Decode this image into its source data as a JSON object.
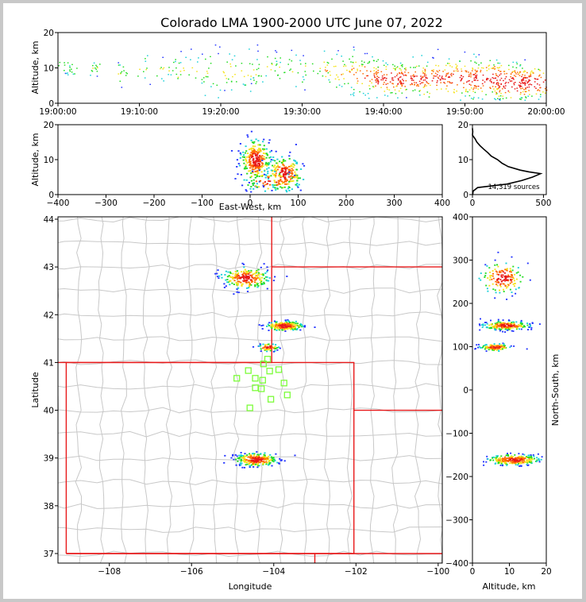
{
  "chart_data": {
    "type": "scatter",
    "title": "Colorado LMA 1900-2000 UTC June 07, 2022",
    "total_sources_label": "14,319 sources",
    "colors": {
      "plot_bg": "#ffffff",
      "state_lines": "#e8191a",
      "county_lines": "#c8c8c8",
      "station_marker": "#7cfc3a",
      "density_low": "#2233ff",
      "density_mid": "#22dd22",
      "density_high": "#e81818"
    },
    "panels": {
      "time_height": {
        "ylabel": "Altitude, km",
        "yticks": [
          "0",
          "10",
          "20"
        ],
        "xticks": [
          "19:00:00",
          "19:10:00",
          "19:20:00",
          "19:30:00",
          "19:40:00",
          "19:50:00",
          "20:00:00"
        ],
        "xlim_minutes": [
          0,
          60
        ],
        "ylim": [
          0,
          20
        ],
        "activity": [
          {
            "t": 0.5,
            "alt": 11,
            "n": 6,
            "spread": 1.5,
            "tw": 0.2
          },
          {
            "t": 1.5,
            "alt": 10,
            "n": 14,
            "spread": 1.3,
            "tw": 0.4
          },
          {
            "t": 4.5,
            "alt": 10,
            "n": 14,
            "spread": 1.2,
            "tw": 0.3
          },
          {
            "t": 8.0,
            "alt": 9,
            "n": 14,
            "spread": 1.8,
            "tw": 0.4
          },
          {
            "t": 10.5,
            "alt": 10,
            "n": 10,
            "spread": 2,
            "tw": 0.4
          },
          {
            "t": 13.5,
            "alt": 10,
            "n": 20,
            "spread": 2,
            "tw": 1.2
          },
          {
            "t": 16.5,
            "alt": 9,
            "n": 24,
            "spread": 3,
            "tw": 1.5
          },
          {
            "t": 19.5,
            "alt": 9,
            "n": 25,
            "spread": 3,
            "tw": 1.5
          },
          {
            "t": 22.5,
            "alt": 9,
            "n": 30,
            "spread": 3,
            "tw": 1.5
          },
          {
            "t": 25.5,
            "alt": 10,
            "n": 25,
            "spread": 2.5,
            "tw": 1.5
          },
          {
            "t": 28.5,
            "alt": 10,
            "n": 20,
            "spread": 2.5,
            "tw": 1.5
          },
          {
            "t": 31.5,
            "alt": 10,
            "n": 20,
            "spread": 2.5,
            "tw": 1.5
          },
          {
            "t": 34.5,
            "alt": 9,
            "n": 40,
            "spread": 3,
            "tw": 1.5
          },
          {
            "t": 37.5,
            "alt": 8,
            "n": 70,
            "spread": 3,
            "tw": 1.5
          },
          {
            "t": 40.5,
            "alt": 7,
            "n": 95,
            "spread": 2.5,
            "tw": 1.5
          },
          {
            "t": 43.5,
            "alt": 7,
            "n": 90,
            "spread": 2.5,
            "tw": 1.5
          },
          {
            "t": 46.5,
            "alt": 7,
            "n": 80,
            "spread": 3,
            "tw": 1.5
          },
          {
            "t": 49.5,
            "alt": 7,
            "n": 90,
            "spread": 3,
            "tw": 1.5
          },
          {
            "t": 52.5,
            "alt": 7,
            "n": 100,
            "spread": 3,
            "tw": 1.5
          },
          {
            "t": 55.5,
            "alt": 6,
            "n": 110,
            "spread": 3,
            "tw": 1.5
          },
          {
            "t": 58.5,
            "alt": 6,
            "n": 120,
            "spread": 2.5,
            "tw": 1.5
          }
        ]
      },
      "ew_height": {
        "ylabel": "Altitude, km",
        "xlabel": "East-West, km",
        "xticks": [
          "−400",
          "−300",
          "−200",
          "−100",
          "0",
          "100",
          "200",
          "300",
          "400"
        ],
        "yticks": [
          "0",
          "10",
          "20"
        ],
        "xlim": [
          -400,
          400
        ],
        "ylim": [
          0,
          20
        ],
        "clusters": [
          {
            "x": 10,
            "alt": 10,
            "sx": 15,
            "sz": 3,
            "n": 260
          },
          {
            "x": 70,
            "alt": 6,
            "sx": 18,
            "sz": 2.5,
            "n": 200
          },
          {
            "x": 40,
            "alt": 4,
            "sx": 25,
            "sz": 1.5,
            "n": 60
          }
        ]
      },
      "histogram": {
        "xticks": [
          "0",
          "500"
        ],
        "yticks": [
          "0",
          "10",
          "20"
        ],
        "xlim": [
          0,
          520
        ],
        "ylim": [
          0,
          20
        ],
        "profile": [
          [
            0,
            1.5
          ],
          [
            1,
            5
          ],
          [
            2,
            30
          ],
          [
            3,
            240
          ],
          [
            4,
            340
          ],
          [
            5,
            420
          ],
          [
            5.5,
            460
          ],
          [
            6,
            480
          ],
          [
            6.5,
            400
          ],
          [
            7,
            330
          ],
          [
            8,
            260
          ],
          [
            9,
            210
          ],
          [
            10,
            170
          ],
          [
            11,
            130
          ],
          [
            12,
            100
          ],
          [
            13,
            75
          ],
          [
            14,
            50
          ],
          [
            15,
            30
          ],
          [
            16,
            16
          ],
          [
            17,
            6
          ],
          [
            18,
            2
          ],
          [
            19,
            0
          ]
        ]
      },
      "map": {
        "xlabel": "Longitude",
        "ylabel": "Latitude",
        "xticks": [
          "−108",
          "−106",
          "−104",
          "−102",
          "−100"
        ],
        "yticks": [
          "37",
          "38",
          "39",
          "40",
          "41",
          "42",
          "43",
          "44"
        ],
        "xlim": [
          -109.25,
          -99.9
        ],
        "ylim": [
          36.8,
          44.05
        ],
        "clusters": [
          {
            "lon": -104.7,
            "lat": 42.78,
            "slon": 0.28,
            "slat": 0.11,
            "n": 220
          },
          {
            "lon": -103.75,
            "lat": 41.78,
            "slon": 0.22,
            "slat": 0.05,
            "n": 200
          },
          {
            "lon": -104.15,
            "lat": 41.33,
            "slon": 0.12,
            "slat": 0.04,
            "n": 60
          },
          {
            "lon": -104.45,
            "lat": 38.98,
            "slon": 0.25,
            "slat": 0.07,
            "n": 240
          }
        ],
        "stations": [
          [
            -104.15,
            41.07
          ],
          [
            -103.88,
            40.85
          ],
          [
            -104.62,
            40.83
          ],
          [
            -104.1,
            40.82
          ],
          [
            -104.25,
            40.97
          ],
          [
            -104.9,
            40.67
          ],
          [
            -104.45,
            40.67
          ],
          [
            -104.27,
            40.63
          ],
          [
            -103.75,
            40.57
          ],
          [
            -104.45,
            40.47
          ],
          [
            -103.67,
            40.32
          ],
          [
            -104.07,
            40.23
          ],
          [
            -104.58,
            40.05
          ],
          [
            -104.3,
            40.45
          ]
        ]
      },
      "ns_height": {
        "ylabel": "North-South, km",
        "xlabel": "Altitude, km",
        "xticks": [
          "0",
          "10",
          "20"
        ],
        "yticks": [
          "−400",
          "−300",
          "−200",
          "−100",
          "0",
          "100",
          "200",
          "300",
          "400"
        ],
        "xlim": [
          0,
          20
        ],
        "ylim": [
          -400,
          400
        ],
        "clusters": [
          {
            "alt": 8,
            "ns": 260,
            "salt": 3,
            "sns": 18,
            "n": 150
          },
          {
            "alt": 9,
            "ns": 150,
            "salt": 3,
            "sns": 5,
            "n": 220
          },
          {
            "alt": 6,
            "ns": 100,
            "salt": 2,
            "sns": 4,
            "n": 120
          },
          {
            "alt": 11,
            "ns": -160,
            "salt": 3.5,
            "sns": 6,
            "n": 280
          }
        ]
      }
    }
  }
}
